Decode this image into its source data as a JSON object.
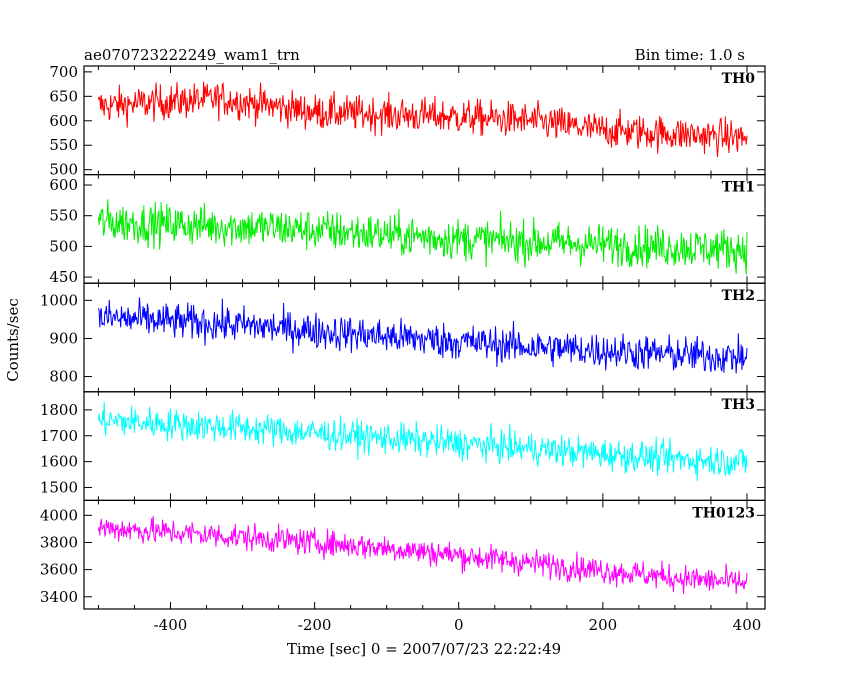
{
  "header": {
    "title": "ae070723222249_wam1_trn",
    "bin_time": "Bin time: 1.0 s"
  },
  "chart_data": {
    "type": "line",
    "title": "ae070723222249_wam1_trn",
    "subtitle": "Bin time: 1.0 s",
    "xlabel": "Time [sec] 0 = 2007/07/23 22:22:49",
    "ylabel": "Counts/sec",
    "xlim": [
      -520,
      425
    ],
    "x_range": [
      -500,
      400
    ],
    "x_ticks": [
      -400,
      -200,
      0,
      200,
      400
    ],
    "grid": false,
    "legend": "none",
    "panels": [
      {
        "name": "TH0",
        "color": "#ff0000",
        "ylim": [
          490,
          712
        ],
        "y_ticks": [
          500,
          550,
          600,
          650,
          700
        ],
        "trend": [
          [
            -500,
            630
          ],
          [
            -330,
            645
          ],
          [
            -200,
            618
          ],
          [
            0,
            608
          ],
          [
            100,
            600
          ],
          [
            190,
            582
          ],
          [
            400,
            565
          ]
        ],
        "noise": 26
      },
      {
        "name": "TH1",
        "color": "#00ee00",
        "ylim": [
          440,
          617
        ],
        "y_ticks": [
          450,
          500,
          550,
          600
        ],
        "trend": [
          [
            -500,
            540
          ],
          [
            -250,
            530
          ],
          [
            0,
            512
          ],
          [
            200,
            503
          ],
          [
            400,
            495
          ]
        ],
        "noise": 24
      },
      {
        "name": "TH2",
        "color": "#0000ff",
        "ylim": [
          760,
          1045
        ],
        "y_ticks": [
          800,
          900,
          1000
        ],
        "trend": [
          [
            -500,
            955
          ],
          [
            -300,
            935
          ],
          [
            -100,
            905
          ],
          [
            100,
            878
          ],
          [
            300,
            858
          ],
          [
            400,
            850
          ]
        ],
        "noise": 34
      },
      {
        "name": "TH3",
        "color": "#00ffff",
        "ylim": [
          1450,
          1870
        ],
        "y_ticks": [
          1500,
          1600,
          1700,
          1800
        ],
        "trend": [
          [
            -500,
            1760
          ],
          [
            -300,
            1730
          ],
          [
            -100,
            1690
          ],
          [
            100,
            1650
          ],
          [
            300,
            1610
          ],
          [
            400,
            1600
          ]
        ],
        "noise": 44
      },
      {
        "name": "TH0123",
        "color": "#ff00ff",
        "ylim": [
          3310,
          4110
        ],
        "y_ticks": [
          3400,
          3600,
          3800,
          4000
        ],
        "trend": [
          [
            -500,
            3910
          ],
          [
            -300,
            3840
          ],
          [
            -100,
            3760
          ],
          [
            100,
            3650
          ],
          [
            300,
            3540
          ],
          [
            400,
            3500
          ]
        ],
        "noise": 70
      }
    ]
  }
}
